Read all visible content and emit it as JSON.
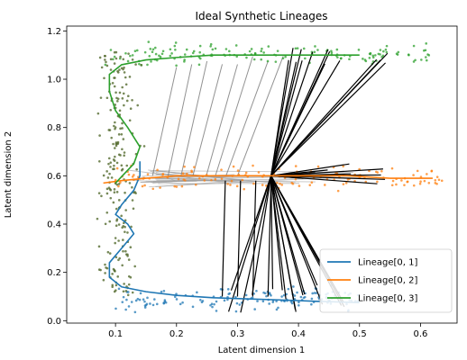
{
  "chart_data": {
    "type": "scatter",
    "title": "Ideal Synthetic Lineages",
    "xlabel": "Latent dimension 1",
    "ylabel": "Latent dimension 2",
    "xlim": [
      0.02,
      0.66
    ],
    "ylim": [
      -0.01,
      1.22
    ],
    "xticks": [
      0.1,
      0.2,
      0.3,
      0.4,
      0.5,
      0.6
    ],
    "yticks": [
      0.0,
      0.2,
      0.4,
      0.6,
      0.8,
      1.0,
      1.2
    ],
    "xtick_labels": [
      "0.1",
      "0.2",
      "0.3",
      "0.4",
      "0.5",
      "0.6"
    ],
    "ytick_labels": [
      "0.0",
      "0.2",
      "0.4",
      "0.6",
      "0.8",
      "1.0",
      "1.2"
    ],
    "grid": false,
    "legend_position": "lower-right",
    "branch_point": [
      0.355,
      0.6
    ],
    "series": [
      {
        "name": "Lineage[0, 1]",
        "color": "#1f77b4",
        "curve": [
          [
            0.14,
            0.66
          ],
          [
            0.14,
            0.6
          ],
          [
            0.13,
            0.54
          ],
          [
            0.11,
            0.48
          ],
          [
            0.1,
            0.44
          ],
          [
            0.12,
            0.4
          ],
          [
            0.13,
            0.36
          ],
          [
            0.11,
            0.3
          ],
          [
            0.09,
            0.24
          ],
          [
            0.09,
            0.18
          ],
          [
            0.11,
            0.14
          ],
          [
            0.15,
            0.12
          ],
          [
            0.2,
            0.105
          ],
          [
            0.26,
            0.095
          ],
          [
            0.32,
            0.09
          ],
          [
            0.38,
            0.085
          ],
          [
            0.43,
            0.08
          ],
          [
            0.5,
            0.075
          ]
        ],
        "scatter_band": {
          "x_range": [
            0.1,
            0.5
          ],
          "y_center": 0.09,
          "spread": 0.03
        }
      },
      {
        "name": "Lineage[0, 2]",
        "color": "#ff7f0e",
        "curve": [
          [
            0.08,
            0.57
          ],
          [
            0.11,
            0.58
          ],
          [
            0.15,
            0.59
          ],
          [
            0.2,
            0.6
          ],
          [
            0.26,
            0.6
          ],
          [
            0.32,
            0.6
          ],
          [
            0.4,
            0.6
          ],
          [
            0.48,
            0.6
          ],
          [
            0.55,
            0.59
          ],
          [
            0.62,
            0.59
          ]
        ],
        "scatter_band": {
          "x_range": [
            0.1,
            0.64
          ],
          "y_center": 0.59,
          "spread": 0.03
        }
      },
      {
        "name": "Lineage[0, 3]",
        "color": "#2ca02c",
        "curve": [
          [
            0.1,
            0.57
          ],
          [
            0.13,
            0.65
          ],
          [
            0.14,
            0.72
          ],
          [
            0.12,
            0.8
          ],
          [
            0.1,
            0.87
          ],
          [
            0.09,
            0.95
          ],
          [
            0.09,
            1.02
          ],
          [
            0.11,
            1.06
          ],
          [
            0.15,
            1.08
          ],
          [
            0.2,
            1.09
          ],
          [
            0.26,
            1.1
          ],
          [
            0.32,
            1.1
          ],
          [
            0.38,
            1.1
          ],
          [
            0.44,
            1.1
          ],
          [
            0.5,
            1.1
          ]
        ],
        "scatter_band": {
          "x_range": [
            0.08,
            0.62
          ],
          "y_center": 1.1,
          "spread": 0.03
        }
      }
    ],
    "vertical_scatter": {
      "color": "#556b2f",
      "x_range": [
        0.04,
        0.17
      ],
      "y_range": [
        0.1,
        1.12
      ]
    }
  }
}
